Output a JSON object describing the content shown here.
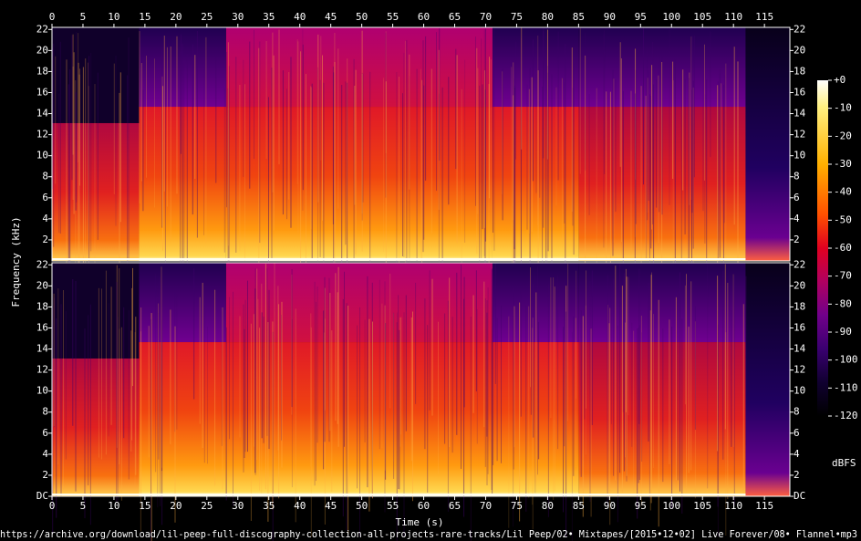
{
  "chart_data": {
    "type": "spectrogram",
    "ylabel": "Frequency (kHz)",
    "xlabel": "Time (s)",
    "xlim": [
      0,
      119.1
    ],
    "xticks": [
      0,
      5,
      10,
      15,
      20,
      25,
      30,
      35,
      40,
      45,
      50,
      55,
      60,
      65,
      70,
      75,
      80,
      85,
      90,
      95,
      100,
      105,
      110,
      115
    ],
    "ylim": [
      0,
      22.2
    ],
    "panels": [
      {
        "yticks": [
          2,
          4,
          6,
          8,
          10,
          12,
          14,
          16,
          18,
          20,
          22
        ]
      },
      {
        "yticks": [
          {
            "value": 0,
            "label": "DC"
          },
          2,
          4,
          6,
          8,
          10,
          12,
          14,
          16,
          18,
          20,
          22
        ]
      }
    ],
    "colorbar": {
      "label": "dBFS",
      "lim": [
        -120,
        0
      ],
      "ticks": [
        {
          "value": 0,
          "label": "+0"
        },
        -10,
        -20,
        -30,
        -40,
        -50,
        -60,
        -70,
        -80,
        -90,
        -100,
        -110,
        -120
      ]
    },
    "footer": "https://archive.org/download/lil-peep-full-discography-collection-all-projects-rare-tracks/Lil Peep/02• Mixtapes/[2015•12•02] Live Forever/08• Flannel•mp3"
  }
}
